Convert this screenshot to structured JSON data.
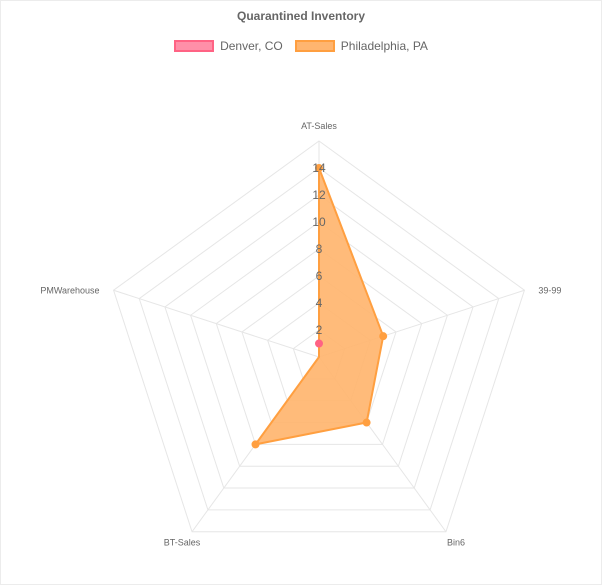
{
  "chart_data": {
    "type": "radar",
    "title": "Quarantined Inventory",
    "categories": [
      "AT-Sales",
      "39-99",
      "Bin6",
      "BT-Sales",
      "PMWarehouse"
    ],
    "series": [
      {
        "name": "Denver, CO",
        "values": [
          1,
          0,
          0,
          0,
          0
        ],
        "color": "#ff6384",
        "fill": "#ff8fa8"
      },
      {
        "name": "Philadelphia, PA",
        "values": [
          14,
          5,
          6,
          8,
          0
        ],
        "color": "#ff9f40",
        "fill": "#ffb56f"
      }
    ],
    "r_range": [
      0,
      16
    ],
    "ticks": [
      "2",
      "4",
      "6",
      "8",
      "10",
      "12",
      "14"
    ],
    "grid": true,
    "legend_position": "top"
  }
}
